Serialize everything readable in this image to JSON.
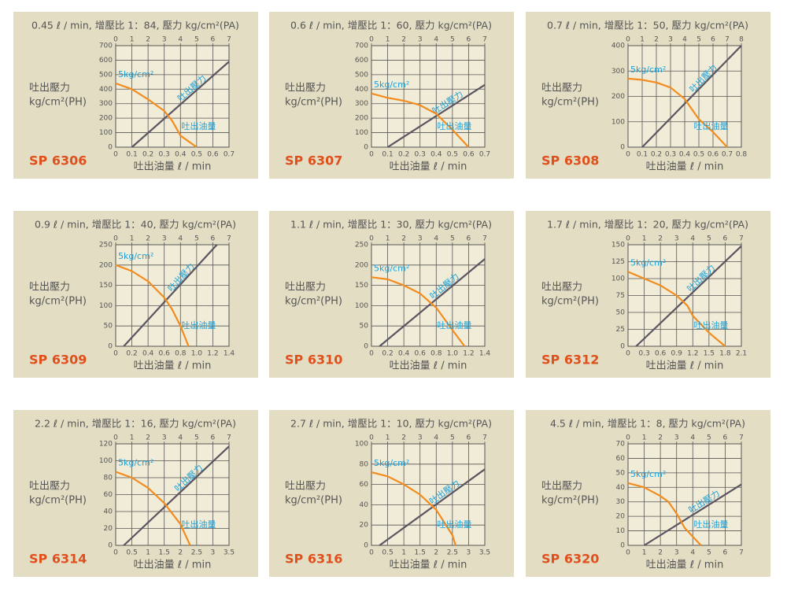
{
  "chart_data": [
    {
      "type": "line",
      "title": "0.45 ℓ / min, 增壓比 1：84, 壓力 kg/cm²(PA)",
      "model": "SP 6306",
      "xlabel": "吐出油量 ℓ / min",
      "ylabel": [
        "吐出壓力",
        "kg/cm²(PH)"
      ],
      "annotations": [
        "5kg/cm²"
      ],
      "xlim": [
        0,
        0.7
      ],
      "xticks": [
        0,
        0.1,
        0.2,
        0.3,
        0.4,
        0.5,
        0.6,
        0.7
      ],
      "x2lim": [
        0,
        7
      ],
      "x2ticks": [
        0,
        1,
        2,
        3,
        4,
        5,
        6,
        7
      ],
      "ylim": [
        0,
        700
      ],
      "yticks": [
        0,
        100,
        200,
        300,
        400,
        500,
        600,
        700
      ],
      "grid": true,
      "series": [
        {
          "name": "吐出壓力",
          "color": "#5a5560",
          "axis": "x2",
          "x": [
            1,
            7
          ],
          "values": [
            0,
            590
          ]
        },
        {
          "name": "吐出油量",
          "color": "#f28c1e",
          "x": [
            0,
            0.1,
            0.2,
            0.3,
            0.35,
            0.4,
            0.5
          ],
          "values": [
            440,
            400,
            330,
            250,
            180,
            80,
            0
          ]
        }
      ]
    },
    {
      "type": "line",
      "title": "0.6 ℓ / min, 增壓比 1：60, 壓力 kg/cm²(PA)",
      "model": "SP 6307",
      "xlabel": "吐出油量 ℓ / min",
      "ylabel": [
        "吐出壓力",
        "kg/cm²(PH)"
      ],
      "annotations": [
        "5kg/cm²"
      ],
      "xlim": [
        0,
        0.7
      ],
      "xticks": [
        0,
        0.1,
        0.2,
        0.3,
        0.4,
        0.5,
        0.6,
        0.7
      ],
      "x2lim": [
        0,
        7
      ],
      "x2ticks": [
        0,
        1,
        2,
        3,
        4,
        5,
        6,
        7
      ],
      "ylim": [
        0,
        700
      ],
      "yticks": [
        0,
        100,
        200,
        300,
        400,
        500,
        600,
        700
      ],
      "grid": true,
      "series": [
        {
          "name": "吐出壓力",
          "color": "#5a5560",
          "axis": "x2",
          "x": [
            1,
            7
          ],
          "values": [
            0,
            430
          ]
        },
        {
          "name": "吐出油量",
          "color": "#f28c1e",
          "x": [
            0,
            0.1,
            0.2,
            0.3,
            0.4,
            0.5,
            0.6
          ],
          "values": [
            370,
            340,
            320,
            290,
            230,
            120,
            0
          ]
        }
      ]
    },
    {
      "type": "line",
      "title": "0.7 ℓ / min, 增壓比 1：50, 壓力 kg/cm²(PA)",
      "model": "SP 6308",
      "xlabel": "吐出油量 ℓ / min",
      "ylabel": [
        "吐出壓力",
        "kg/cm²(PH)"
      ],
      "annotations": [
        "5kg/cm²"
      ],
      "xlim": [
        0,
        0.8
      ],
      "xticks": [
        0,
        0.1,
        0.2,
        0.3,
        0.4,
        0.5,
        0.6,
        0.7,
        0.8
      ],
      "x2lim": [
        0,
        8
      ],
      "x2ticks": [
        0,
        1,
        2,
        3,
        4,
        5,
        6,
        7,
        8
      ],
      "ylim": [
        0,
        400
      ],
      "yticks": [
        0,
        100,
        200,
        300,
        400
      ],
      "grid": true,
      "series": [
        {
          "name": "吐出壓力",
          "color": "#5a5560",
          "axis": "x2",
          "x": [
            1,
            8
          ],
          "values": [
            0,
            400
          ]
        },
        {
          "name": "吐出油量",
          "color": "#f28c1e",
          "x": [
            0,
            0.1,
            0.2,
            0.3,
            0.4,
            0.5,
            0.6,
            0.7
          ],
          "values": [
            270,
            265,
            255,
            235,
            190,
            110,
            60,
            0
          ]
        }
      ]
    },
    {
      "type": "line",
      "title": "0.9 ℓ / min, 增壓比 1：40, 壓力 kg/cm²(PA)",
      "model": "SP 6309",
      "xlabel": "吐出油量 ℓ / min",
      "ylabel": [
        "吐出壓力",
        "kg/cm²(PH)"
      ],
      "annotations": [
        "5kg/cm²"
      ],
      "xlim": [
        0,
        1.4
      ],
      "xticks": [
        0,
        0.2,
        0.4,
        0.6,
        0.8,
        {
          "value": 1,
          "label": "1.0"
        },
        1.2,
        1.4
      ],
      "x2lim": [
        0,
        7
      ],
      "x2ticks": [
        0,
        1,
        2,
        3,
        4,
        5,
        6,
        7
      ],
      "ylim": [
        0,
        250
      ],
      "yticks": [
        0,
        50,
        100,
        150,
        200,
        250
      ],
      "grid": true,
      "series": [
        {
          "name": "吐出壓力",
          "color": "#5a5560",
          "axis": "x2",
          "x": [
            0.5,
            6.25
          ],
          "values": [
            0,
            250
          ]
        },
        {
          "name": "吐出油量",
          "color": "#f28c1e",
          "x": [
            0,
            0.2,
            0.4,
            0.6,
            0.7,
            0.8,
            0.9
          ],
          "values": [
            200,
            185,
            160,
            120,
            90,
            50,
            0
          ]
        }
      ]
    },
    {
      "type": "line",
      "title": "1.1 ℓ / min, 增壓比 1：30, 壓力 kg/cm²(PA)",
      "model": "SP 6310",
      "xlabel": "吐出油量 ℓ / min",
      "ylabel": [
        "吐出壓力",
        "kg/cm²(PH)"
      ],
      "annotations": [
        "5kg/cm²"
      ],
      "xlim": [
        0,
        1.4
      ],
      "xticks": [
        0,
        0.2,
        0.4,
        0.6,
        0.8,
        {
          "value": 1,
          "label": "1.0"
        },
        1.2,
        1.4
      ],
      "x2lim": [
        0,
        7
      ],
      "x2ticks": [
        0,
        1,
        2,
        3,
        4,
        5,
        6,
        7
      ],
      "ylim": [
        0,
        250
      ],
      "yticks": [
        0,
        50,
        100,
        150,
        200,
        250
      ],
      "grid": true,
      "series": [
        {
          "name": "吐出壓力",
          "color": "#5a5560",
          "axis": "x2",
          "x": [
            0.5,
            7
          ],
          "values": [
            0,
            215
          ]
        },
        {
          "name": "吐出油量",
          "color": "#f28c1e",
          "x": [
            0,
            0.2,
            0.4,
            0.6,
            0.8,
            1.0,
            1.15
          ],
          "values": [
            170,
            165,
            150,
            130,
            95,
            40,
            0
          ]
        }
      ]
    },
    {
      "type": "line",
      "title": "1.7 ℓ / min, 增壓比 1：20, 壓力 kg/cm²(PA)",
      "model": "SP 6312",
      "xlabel": "吐出油量 ℓ / min",
      "ylabel": [
        "吐出壓力",
        "kg/cm²(PH)"
      ],
      "annotations": [
        "5kg/cm²"
      ],
      "xlim": [
        0,
        2.1
      ],
      "xticks": [
        0,
        0.3,
        0.6,
        0.9,
        1.2,
        1.5,
        1.8,
        2.1
      ],
      "x2lim": [
        0,
        7
      ],
      "x2ticks": [
        0,
        1,
        2,
        3,
        4,
        5,
        6,
        7
      ],
      "ylim": [
        0,
        150
      ],
      "yticks": [
        0,
        25,
        50,
        75,
        100,
        125,
        150
      ],
      "grid": true,
      "series": [
        {
          "name": "吐出壓力",
          "color": "#5a5560",
          "axis": "x2",
          "x": [
            0.5,
            7
          ],
          "values": [
            0,
            148
          ]
        },
        {
          "name": "吐出油量",
          "color": "#f28c1e",
          "x": [
            0,
            0.3,
            0.6,
            0.9,
            1.1,
            1.2,
            1.5,
            1.8
          ],
          "values": [
            110,
            100,
            90,
            75,
            60,
            45,
            20,
            0
          ]
        }
      ]
    },
    {
      "type": "line",
      "title": "2.2 ℓ / min, 增壓比 1：16, 壓力 kg/cm²(PA)",
      "model": "SP 6314",
      "xlabel": "吐出油量 ℓ / min",
      "ylabel": [
        "吐出壓力",
        "kg/cm²(PH)"
      ],
      "annotations": [
        "5kg/cm²"
      ],
      "xlim": [
        0,
        3.5
      ],
      "xticks": [
        0,
        0.5,
        1,
        1.5,
        2,
        2.5,
        3,
        3.5
      ],
      "x2lim": [
        0,
        7
      ],
      "x2ticks": [
        0,
        1,
        2,
        3,
        4,
        5,
        6,
        7
      ],
      "ylim": [
        0,
        120
      ],
      "yticks": [
        0,
        20,
        40,
        60,
        80,
        100,
        120
      ],
      "grid": true,
      "series": [
        {
          "name": "吐出壓力",
          "color": "#5a5560",
          "axis": "x2",
          "x": [
            0.5,
            7
          ],
          "values": [
            0,
            117
          ]
        },
        {
          "name": "吐出油量",
          "color": "#f28c1e",
          "x": [
            0,
            0.5,
            1,
            1.5,
            2,
            2.3
          ],
          "values": [
            87,
            80,
            68,
            50,
            25,
            0
          ]
        }
      ]
    },
    {
      "type": "line",
      "title": "2.7 ℓ / min, 增壓比 1：10, 壓力 kg/cm²(PA)",
      "model": "SP 6316",
      "xlabel": "吐出油量 ℓ / min",
      "ylabel": [
        "吐出壓力",
        "kg/cm²(PH)"
      ],
      "annotations": [
        "5kg/cm²"
      ],
      "xlim": [
        0,
        3.5
      ],
      "xticks": [
        0,
        0.5,
        1,
        1.5,
        2,
        2.5,
        3,
        3.5
      ],
      "x2lim": [
        0,
        7
      ],
      "x2ticks": [
        0,
        1,
        2,
        3,
        4,
        5,
        6,
        7
      ],
      "ylim": [
        0,
        100
      ],
      "yticks": [
        0,
        20,
        40,
        60,
        80,
        100
      ],
      "grid": true,
      "series": [
        {
          "name": "吐出壓力",
          "color": "#5a5560",
          "axis": "x2",
          "x": [
            0.5,
            7
          ],
          "values": [
            0,
            75
          ]
        },
        {
          "name": "吐出油量",
          "color": "#f28c1e",
          "x": [
            0,
            0.5,
            1,
            1.5,
            2,
            2.5,
            2.6
          ],
          "values": [
            72,
            68,
            60,
            50,
            35,
            10,
            0
          ]
        }
      ]
    },
    {
      "type": "line",
      "title": "4.5 ℓ / min, 增壓比 1：8, 壓力 kg/cm²(PA)",
      "model": "SP 6320",
      "xlabel": "吐出油量 ℓ / min",
      "ylabel": [
        "吐出壓力",
        "kg/cm²(PH)"
      ],
      "annotations": [
        "5kg/cm²"
      ],
      "xlim": [
        0,
        7
      ],
      "xticks": [
        0,
        1,
        2,
        3,
        4,
        5,
        6,
        7
      ],
      "x2lim": [
        0,
        7
      ],
      "x2ticks": [
        0,
        1,
        2,
        3,
        4,
        5,
        6,
        7
      ],
      "ylim": [
        0,
        70
      ],
      "yticks": [
        0,
        10,
        20,
        30,
        40,
        50,
        60,
        70
      ],
      "grid": true,
      "series": [
        {
          "name": "吐出壓力",
          "color": "#5a5560",
          "axis": "x2",
          "x": [
            1,
            7
          ],
          "values": [
            0,
            42
          ]
        },
        {
          "name": "吐出油量",
          "color": "#f28c1e",
          "x": [
            0,
            1,
            2,
            2.5,
            3,
            3.5,
            4.5
          ],
          "values": [
            43,
            40,
            34,
            30,
            22,
            12,
            0
          ]
        }
      ]
    }
  ]
}
